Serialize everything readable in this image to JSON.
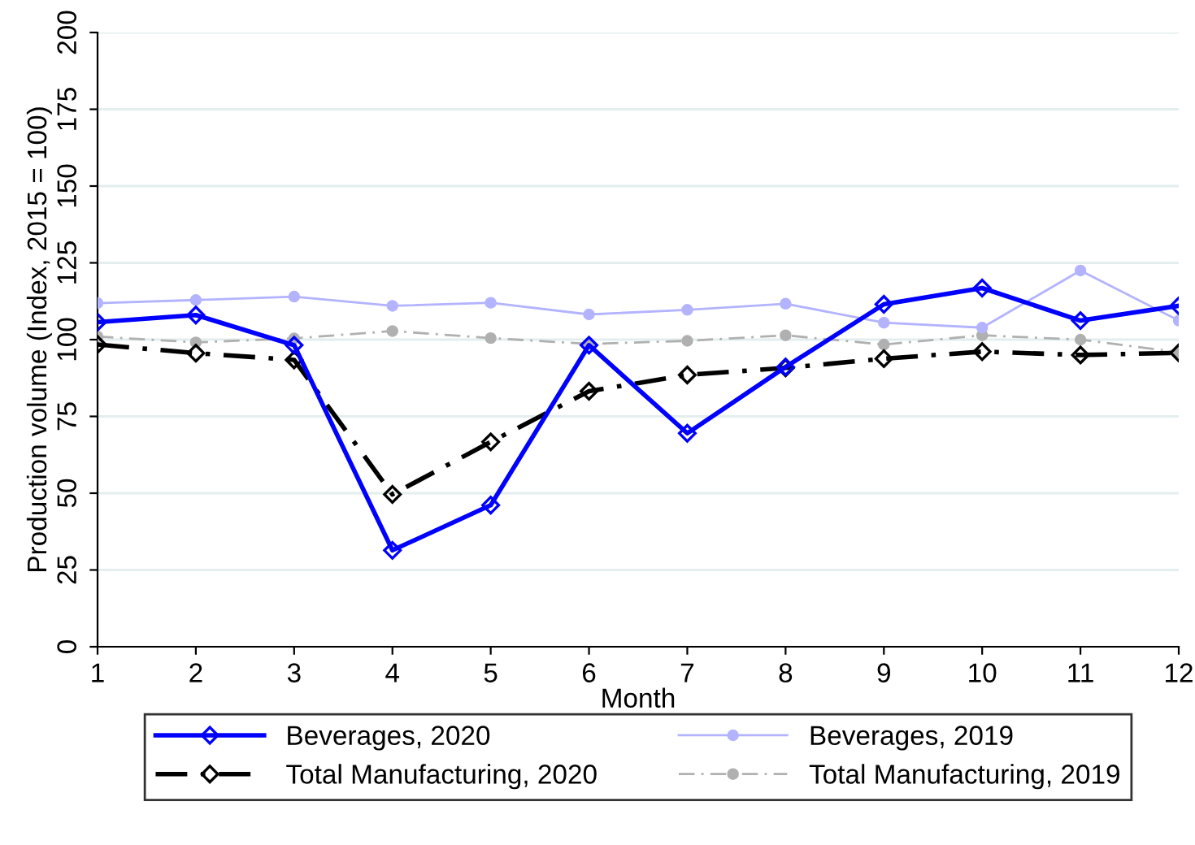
{
  "chart_data": {
    "type": "line",
    "xlabel": "Month",
    "ylabel": "Production volume (Index, 2015 = 100)",
    "x": [
      1,
      2,
      3,
      4,
      5,
      6,
      7,
      8,
      9,
      10,
      11,
      12
    ],
    "series": [
      {
        "name": "Beverages, 2020",
        "color": "#0000ff",
        "marker": "diamond",
        "line_style": "solid",
        "values": [
          105.7,
          108,
          98.2,
          31.4,
          46.1,
          98.2,
          69.5,
          91.1,
          111.5,
          116.8,
          106.2,
          111
        ]
      },
      {
        "name": "Beverages, 2019",
        "color": "#b3b3ff",
        "marker": "circle",
        "line_style": "solid",
        "values": [
          111.9,
          112.9,
          114,
          111,
          112,
          108.2,
          109.7,
          111.7,
          105.5,
          103.9,
          122.5,
          106.2
        ]
      },
      {
        "name": "Total Manufacturing, 2020",
        "color": "#000000",
        "marker": "diamond",
        "line_style": "dashed",
        "values": [
          98.4,
          95.6,
          93.4,
          49.6,
          66.7,
          83.2,
          88.5,
          90.8,
          93.8,
          96.1,
          95,
          95.7
        ]
      },
      {
        "name": "Total Manufacturing, 2019",
        "color": "#b0b0b0",
        "marker": "circle",
        "line_style": "dashed",
        "values": [
          101,
          99.1,
          100.4,
          102.8,
          100.5,
          98.6,
          99.6,
          101.4,
          98.4,
          101.4,
          100,
          95.9
        ]
      }
    ],
    "xlim": [
      1,
      12
    ],
    "xticks": [
      1,
      2,
      3,
      4,
      5,
      6,
      7,
      8,
      9,
      10,
      11,
      12
    ],
    "ylim": [
      0,
      200
    ],
    "yticks": [
      0,
      25,
      50,
      75,
      100,
      125,
      150,
      175,
      200
    ],
    "grid": "y",
    "legend": "bottom"
  }
}
